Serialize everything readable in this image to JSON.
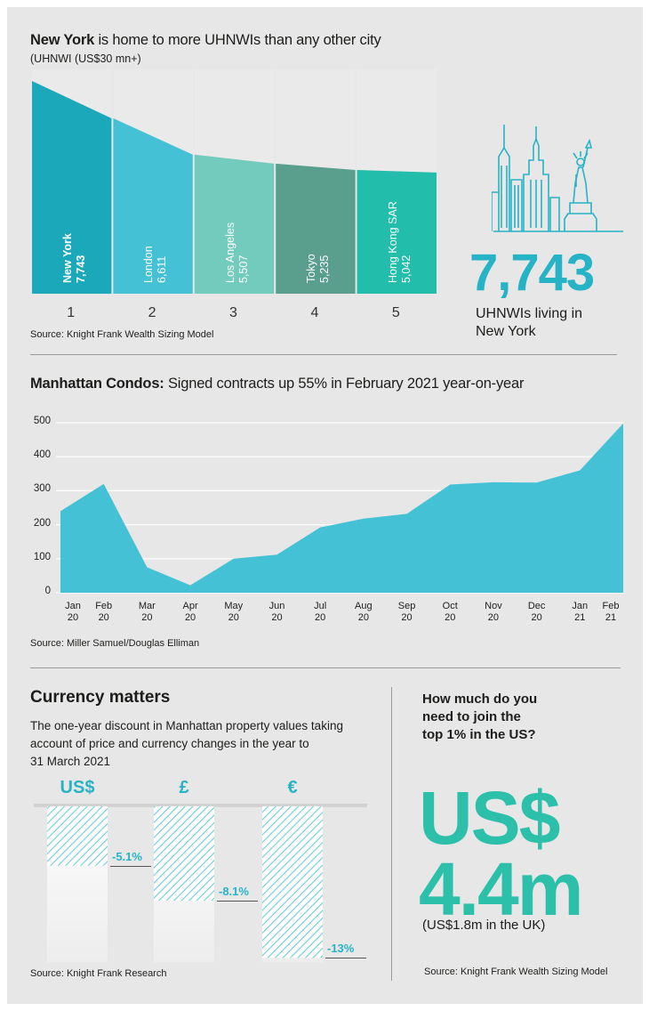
{
  "section1": {
    "title_bold": "New York",
    "title_rest": " is home to more UHNWIs than any other city",
    "subtitle": "(UHNWI (US$30 mn+)",
    "bars": [
      {
        "city": "New York",
        "value": 7743,
        "value_label": "7,743",
        "rank": "1",
        "color": "#1ba8bb",
        "bold": true
      },
      {
        "city": "London",
        "value": 6611,
        "value_label": "6,611",
        "rank": "2",
        "color": "#45c1d5",
        "bold": false
      },
      {
        "city": "Los Angeles",
        "value": 5507,
        "value_label": "5,507",
        "rank": "3",
        "color": "#72cbbd",
        "bold": false
      },
      {
        "city": "Tokyo",
        "value": 5235,
        "value_label": "5,235",
        "rank": "4",
        "color": "#5a9e8d",
        "bold": false
      },
      {
        "city": "Hong Kong SAR",
        "value": 5042,
        "value_label": "5,042",
        "rank": "5",
        "color": "#22bdab",
        "bold": false
      }
    ],
    "source": "Source: Knight Frank Wealth Sizing Model",
    "highlight_number": "7,743",
    "highlight_text_1": "UHNWIs living in",
    "highlight_text_2": "New York"
  },
  "section2": {
    "title_bold": "Manhattan Condos:",
    "title_rest": " Signed contracts up 55% in February 2021 year-on-year",
    "source": "Source: Miller Samuel/Douglas Elliman"
  },
  "chart_data": [
    {
      "type": "bar",
      "title": "New York is home to more UHNWIs than any other city",
      "ylabel": "UHNWI (US$30 mn+)",
      "categories": [
        "New York",
        "London",
        "Los Angeles",
        "Tokyo",
        "Hong Kong SAR"
      ],
      "values": [
        7743,
        6611,
        5507,
        5235,
        5042
      ]
    },
    {
      "type": "area",
      "title": "Manhattan Condos: Signed contracts up 55% in February 2021 year-on-year",
      "categories": [
        [
          "Jan",
          "20"
        ],
        [
          "Feb",
          "20"
        ],
        [
          "Mar",
          "20"
        ],
        [
          "Apr",
          "20"
        ],
        [
          "May",
          "20"
        ],
        [
          "Jun",
          "20"
        ],
        [
          "Jul",
          "20"
        ],
        [
          "Aug",
          "20"
        ],
        [
          "Sep",
          "20"
        ],
        [
          "Oct",
          "20"
        ],
        [
          "Nov",
          "20"
        ],
        [
          "Dec",
          "20"
        ],
        [
          "Jan",
          "21"
        ],
        [
          "Feb",
          "21"
        ]
      ],
      "values": [
        240,
        320,
        75,
        22,
        100,
        112,
        192,
        218,
        232,
        318,
        325,
        324,
        360,
        498
      ],
      "yticks": [
        0,
        100,
        200,
        300,
        400,
        500
      ],
      "ylim": [
        0,
        500
      ],
      "color": "#45c1d5"
    },
    {
      "type": "bar",
      "title": "Currency matters",
      "categories": [
        "US$",
        "£",
        "€"
      ],
      "values": [
        -5.1,
        -8.1,
        -13
      ],
      "value_labels": [
        "-5.1%",
        "-8.1%",
        "-13%"
      ],
      "ylim": [
        -15,
        0
      ]
    }
  ],
  "section3": {
    "title": "Currency matters",
    "desc_1": "The one-year discount in Manhattan property values taking",
    "desc_2": "account of price and currency changes in the year to",
    "desc_3": "31 March 2021",
    "source": "Source: Knight Frank Research"
  },
  "section4": {
    "q1": "How much do you",
    "q2": "need to join the",
    "q3": "top 1% in the US?",
    "big1": "US$",
    "big2": "4.4m",
    "note": "(US$1.8m in the UK)",
    "source": "Source: Knight Frank Wealth Sizing Model"
  },
  "colors": {
    "teal": "#27b3c6",
    "green": "#2cc0aa",
    "area": "#45c1d5"
  }
}
